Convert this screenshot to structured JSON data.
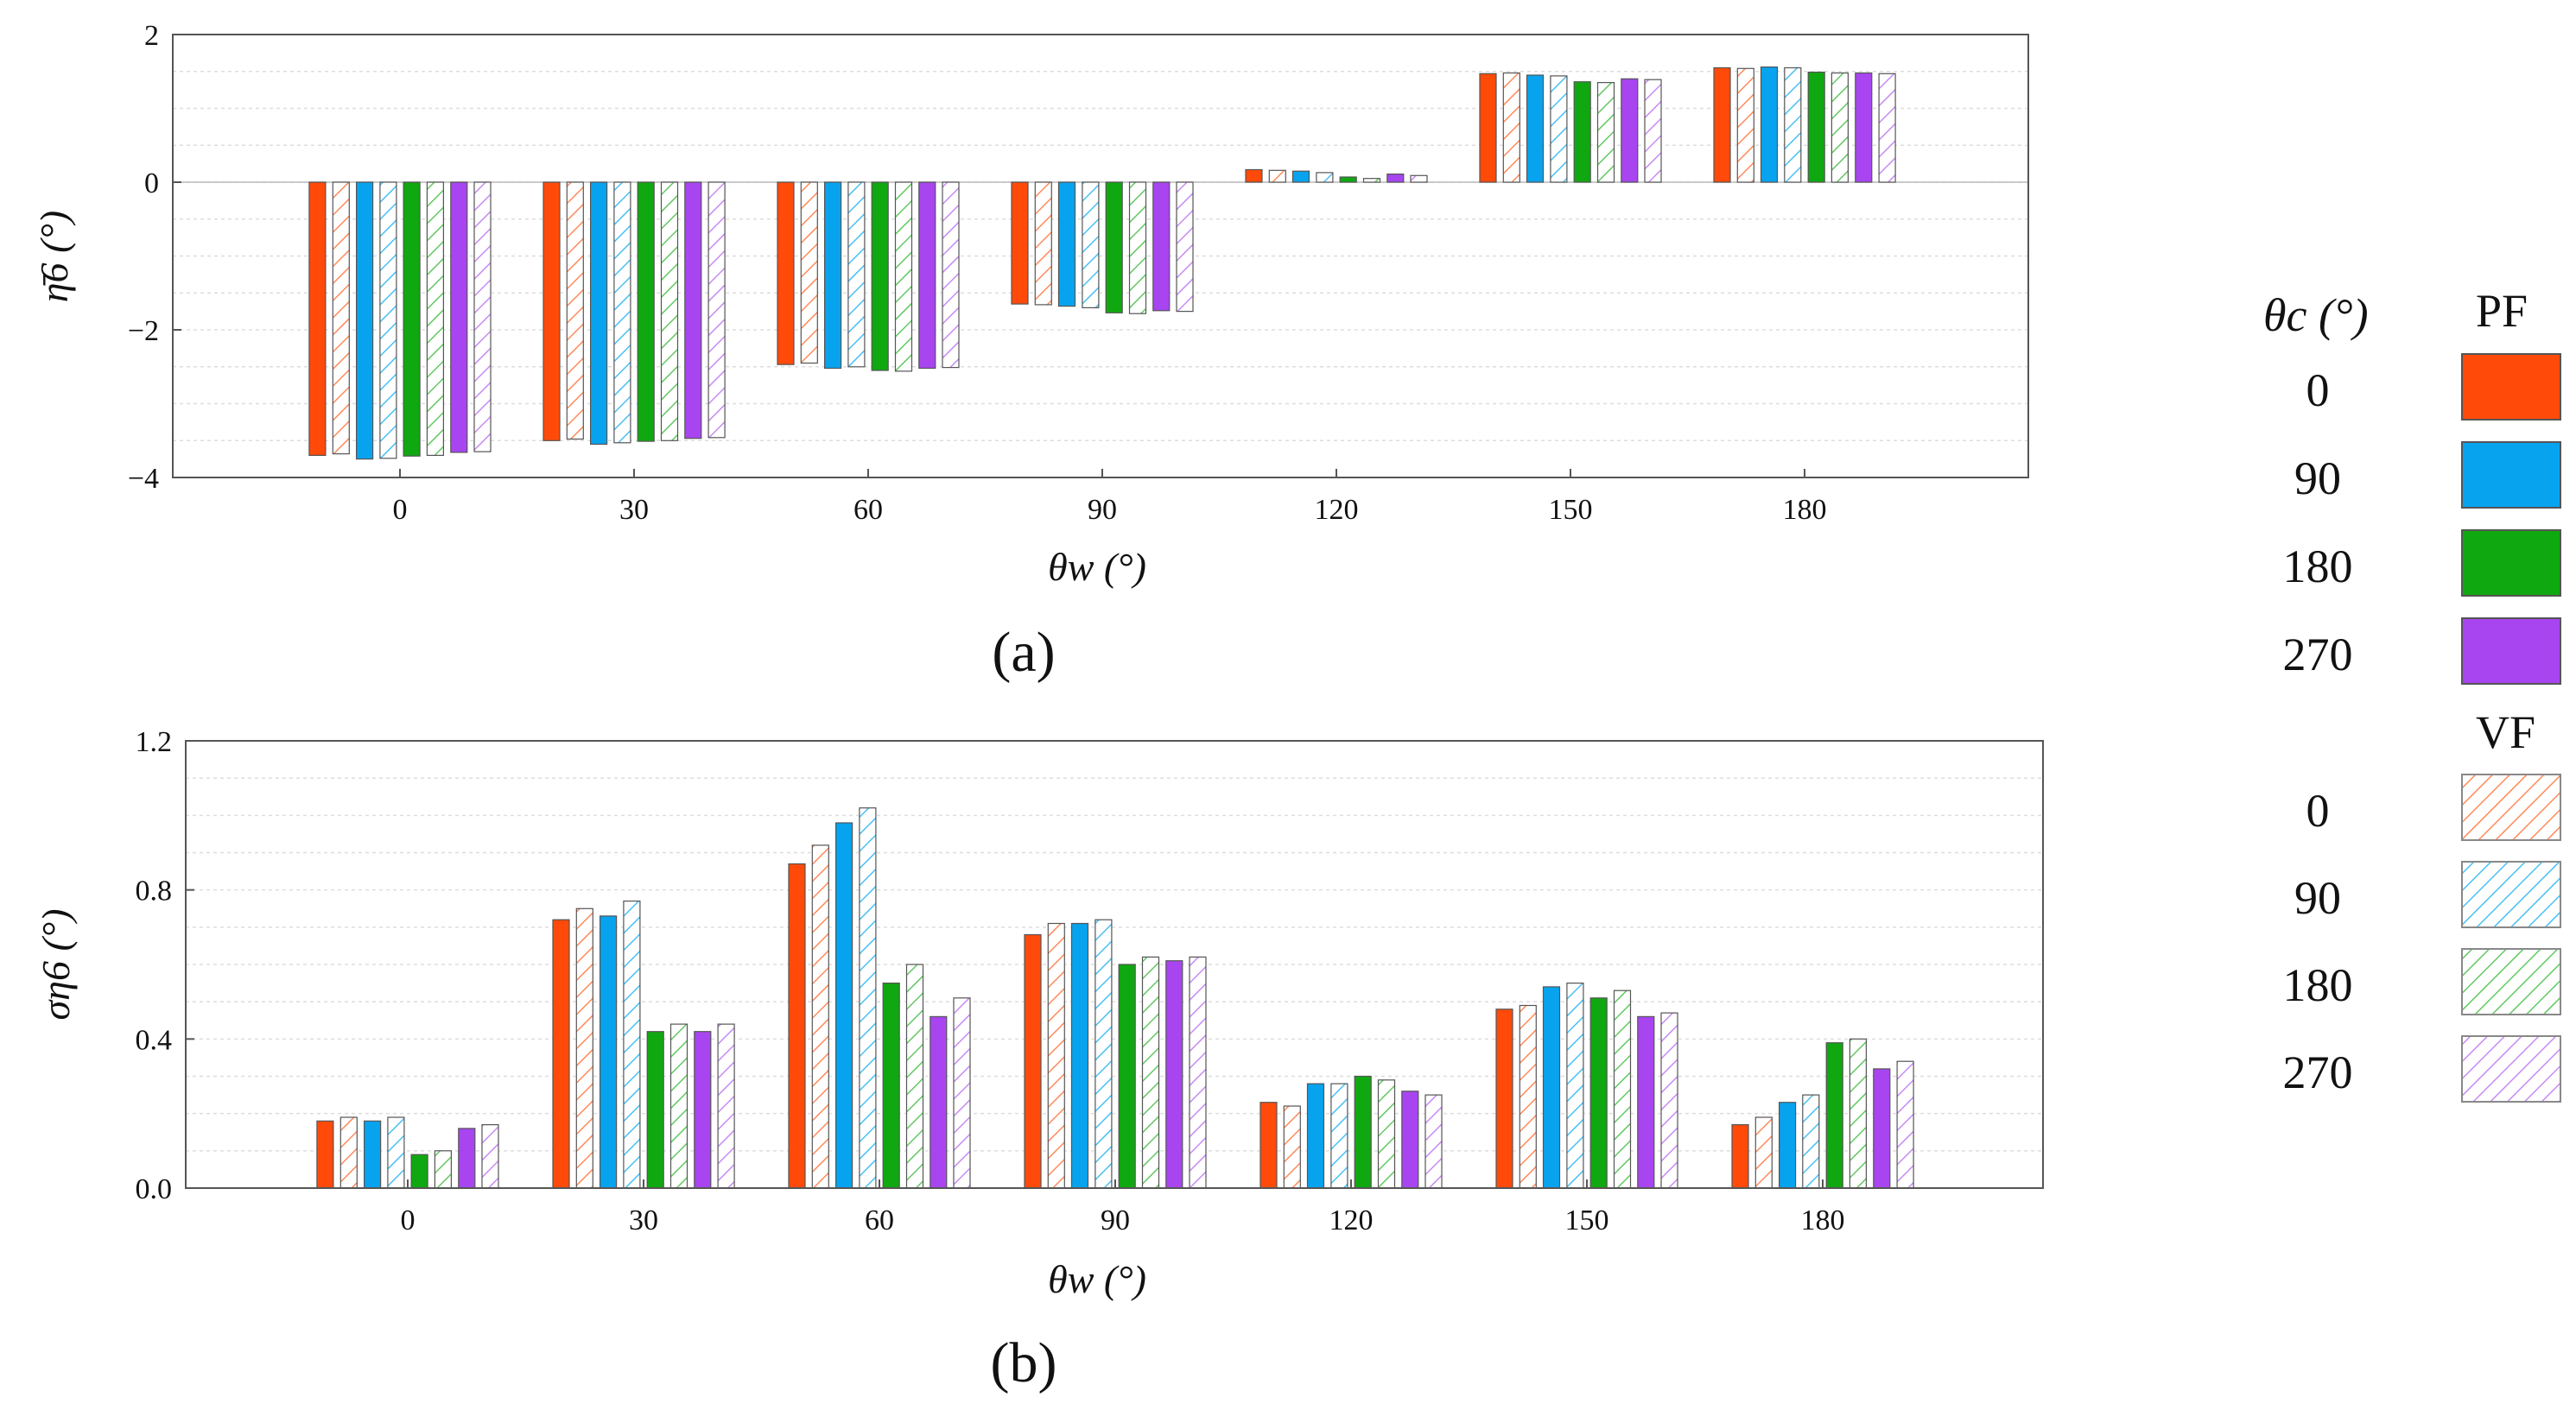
{
  "figure": {
    "panel_a_label": "(a)",
    "panel_b_label": "(b)"
  },
  "legend": {
    "header_theta": "θc (°)",
    "pf_title": "PF",
    "vf_title": "VF",
    "pf_items": [
      "0",
      "90",
      "180",
      "270"
    ],
    "vf_items": [
      "0",
      "90",
      "180",
      "270"
    ]
  },
  "colors": {
    "theta_0": "#ff4a0a",
    "theta_90": "#08a3ee",
    "theta_180": "#10a810",
    "theta_270": "#a845f0"
  },
  "chart_data": [
    {
      "type": "bar",
      "panel": "a",
      "title": "",
      "xlabel": "θw (°)",
      "ylabel": "η̄6 (°)",
      "categories": [
        "0",
        "30",
        "60",
        "90",
        "120",
        "150",
        "180"
      ],
      "ylim": [
        -4,
        2
      ],
      "yticks": [
        "2",
        "0",
        "−2",
        "−4"
      ],
      "grid": true,
      "series": [
        {
          "name": "PF 0",
          "values": [
            -3.7,
            -3.5,
            -2.47,
            -1.65,
            0.17,
            1.47,
            1.55
          ]
        },
        {
          "name": "VF 0",
          "values": [
            -3.68,
            -3.48,
            -2.45,
            -1.66,
            0.16,
            1.48,
            1.54
          ]
        },
        {
          "name": "PF 90",
          "values": [
            -3.75,
            -3.55,
            -2.52,
            -1.68,
            0.15,
            1.45,
            1.56
          ]
        },
        {
          "name": "VF 90",
          "values": [
            -3.74,
            -3.53,
            -2.5,
            -1.7,
            0.13,
            1.44,
            1.55
          ]
        },
        {
          "name": "PF 180",
          "values": [
            -3.71,
            -3.51,
            -2.55,
            -1.77,
            0.07,
            1.36,
            1.49
          ]
        },
        {
          "name": "VF 180",
          "values": [
            -3.7,
            -3.5,
            -2.56,
            -1.78,
            0.05,
            1.35,
            1.48
          ]
        },
        {
          "name": "PF 270",
          "values": [
            -3.66,
            -3.47,
            -2.52,
            -1.74,
            0.11,
            1.4,
            1.48
          ]
        },
        {
          "name": "VF 270",
          "values": [
            -3.65,
            -3.46,
            -2.51,
            -1.75,
            0.09,
            1.39,
            1.47
          ]
        }
      ]
    },
    {
      "type": "bar",
      "panel": "b",
      "title": "",
      "xlabel": "θw (°)",
      "ylabel": "ση6 (°)",
      "categories": [
        "0",
        "30",
        "60",
        "90",
        "120",
        "150",
        "180"
      ],
      "ylim": [
        0,
        1.2
      ],
      "yticks": [
        "1.2",
        "0.8",
        "0.4",
        "0.0"
      ],
      "grid": true,
      "series": [
        {
          "name": "PF 0",
          "values": [
            0.18,
            0.72,
            0.87,
            0.68,
            0.23,
            0.48,
            0.17
          ]
        },
        {
          "name": "VF 0",
          "values": [
            0.19,
            0.75,
            0.92,
            0.71,
            0.22,
            0.49,
            0.19
          ]
        },
        {
          "name": "PF 90",
          "values": [
            0.18,
            0.73,
            0.98,
            0.71,
            0.28,
            0.54,
            0.23
          ]
        },
        {
          "name": "VF 90",
          "values": [
            0.19,
            0.77,
            1.02,
            0.72,
            0.28,
            0.55,
            0.25
          ]
        },
        {
          "name": "PF 180",
          "values": [
            0.09,
            0.42,
            0.55,
            0.6,
            0.3,
            0.51,
            0.39
          ]
        },
        {
          "name": "VF 180",
          "values": [
            0.1,
            0.44,
            0.6,
            0.62,
            0.29,
            0.53,
            0.4
          ]
        },
        {
          "name": "PF 270",
          "values": [
            0.16,
            0.42,
            0.46,
            0.61,
            0.26,
            0.46,
            0.32
          ]
        },
        {
          "name": "VF 270",
          "values": [
            0.17,
            0.44,
            0.51,
            0.62,
            0.25,
            0.47,
            0.34
          ]
        }
      ]
    }
  ]
}
